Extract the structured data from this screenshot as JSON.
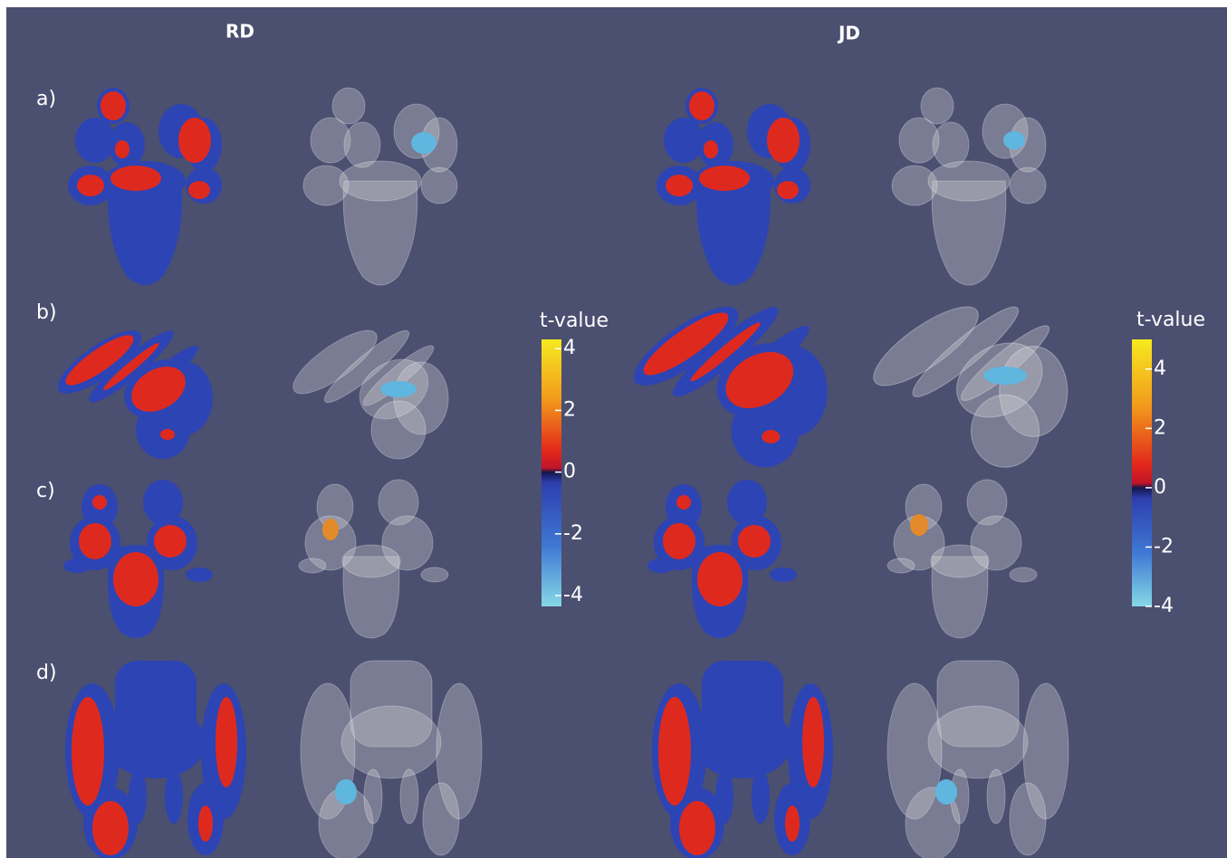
{
  "header": {
    "columns": [
      "RD",
      "JD"
    ]
  },
  "rows": [
    "a)",
    "b)",
    "c)",
    "d)"
  ],
  "colorbars": [
    {
      "title": "t-value",
      "ticks": [
        4,
        2,
        0,
        -2,
        -4
      ],
      "range": [
        -4.35,
        4.3
      ]
    },
    {
      "title": "t-value",
      "ticks": [
        4,
        2,
        0,
        -2,
        -4
      ],
      "range": [
        -4,
        5
      ]
    }
  ]
}
